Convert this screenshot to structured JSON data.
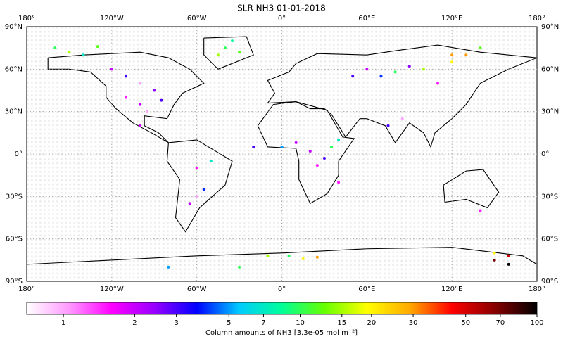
{
  "title": "SLR NH3 01-01-2018",
  "map": {
    "lon_ticks": [
      {
        "value": -180,
        "label": "180°"
      },
      {
        "value": -120,
        "label": "120°W"
      },
      {
        "value": -60,
        "label": "60°W"
      },
      {
        "value": 0,
        "label": "0°"
      },
      {
        "value": 60,
        "label": "60°E"
      },
      {
        "value": 120,
        "label": "120°E"
      },
      {
        "value": 180,
        "label": "180°"
      }
    ],
    "lat_ticks": [
      {
        "value": 90,
        "label": "90°N"
      },
      {
        "value": 60,
        "label": "60°N"
      },
      {
        "value": 30,
        "label": "30°N"
      },
      {
        "value": 0,
        "label": "0°"
      },
      {
        "value": -30,
        "label": "30°S"
      },
      {
        "value": -60,
        "label": "60°S"
      },
      {
        "value": -90,
        "label": "90°S"
      }
    ],
    "points": {
      "lon": [
        -160,
        -150,
        -140,
        -130,
        -120,
        -110,
        -100,
        -90,
        -110,
        -100,
        -95,
        -85,
        -40,
        -35,
        -45,
        -30,
        -20,
        0,
        10,
        20,
        30,
        25,
        35,
        40,
        50,
        60,
        70,
        80,
        90,
        100,
        110,
        120,
        130,
        140,
        150,
        160,
        -10,
        5,
        15,
        25,
        -60,
        -55,
        -65,
        -50,
        75,
        85,
        140,
        150,
        160,
        -80,
        -30,
        120,
        -100,
        -60,
        40
      ],
      "lat": [
        75,
        72,
        70,
        76,
        60,
        55,
        50,
        45,
        40,
        35,
        30,
        38,
        75,
        80,
        70,
        72,
        5,
        5,
        8,
        2,
        -3,
        -8,
        5,
        10,
        55,
        60,
        55,
        58,
        62,
        60,
        50,
        65,
        70,
        75,
        -70,
        -72,
        -72,
        -72,
        -74,
        -73,
        -10,
        -25,
        -35,
        -5,
        20,
        25,
        -40,
        -75,
        -78,
        -80,
        -80,
        70,
        20,
        -30,
        -20
      ],
      "values": [
        10,
        15,
        7,
        12,
        2,
        3,
        1,
        2.5,
        1.5,
        2,
        1,
        3,
        10,
        8,
        15,
        12,
        3,
        5,
        2,
        2,
        3,
        1.5,
        10,
        7,
        3,
        2,
        4,
        10,
        2.5,
        15,
        1.5,
        20,
        30,
        12,
        20,
        50,
        15,
        10,
        20,
        30,
        1.5,
        4,
        2,
        7,
        3,
        1,
        1.5,
        70,
        100,
        5,
        10,
        30,
        2,
        1,
        1.5
      ]
    }
  },
  "colorbar": {
    "label": "Column amounts of NH3 [3.3e-05 mol m⁻²]",
    "clim": [
      0.7,
      100
    ],
    "ticks": [
      1,
      2,
      3,
      5,
      7,
      10,
      15,
      20,
      30,
      50,
      70,
      100
    ],
    "colormap": [
      "#ffffff",
      "#ff99ff",
      "#ff00ff",
      "#9900ff",
      "#0000ff",
      "#00ccff",
      "#00ff99",
      "#66ff00",
      "#ffff00",
      "#ffaa00",
      "#ff0000",
      "#880000",
      "#000000"
    ]
  }
}
